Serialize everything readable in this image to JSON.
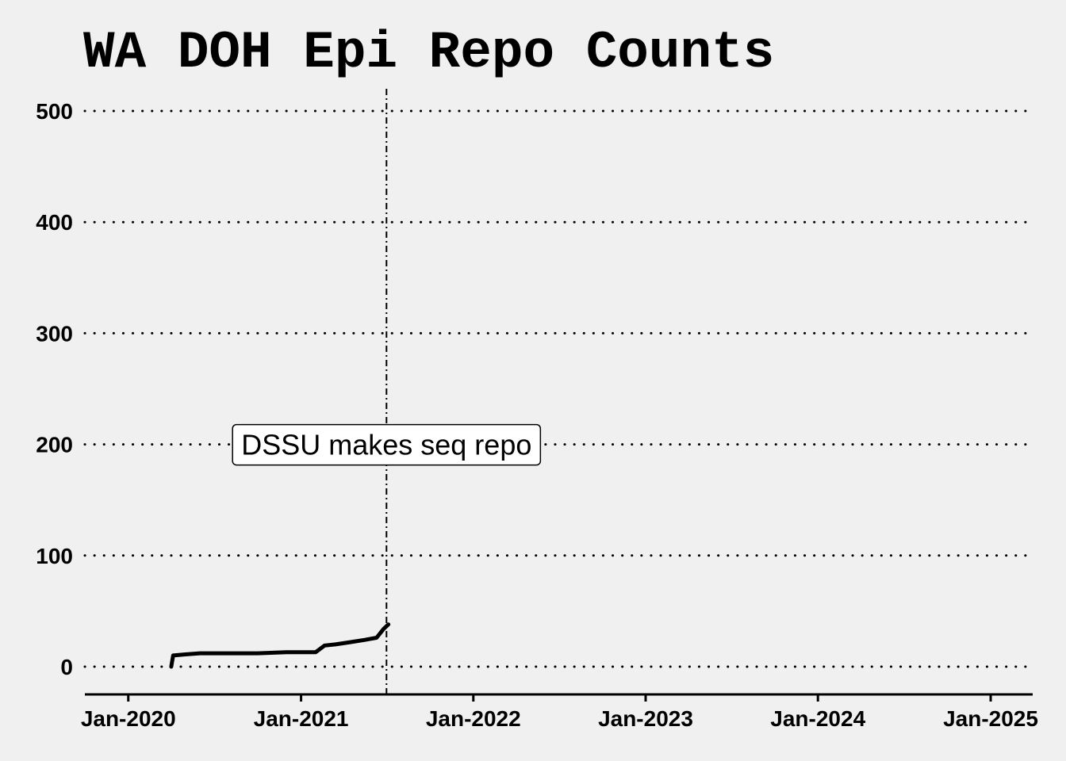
{
  "chart_data": {
    "type": "line",
    "title": "WA DOH Epi Repo Counts",
    "xlabel": "",
    "ylabel": "",
    "x_axis": {
      "type": "date",
      "range": [
        "2019-10-01",
        "2025-03-31"
      ],
      "ticks": [
        {
          "value": "2020-01-01",
          "label": "Jan-2020"
        },
        {
          "value": "2021-01-01",
          "label": "Jan-2021"
        },
        {
          "value": "2022-01-01",
          "label": "Jan-2022"
        },
        {
          "value": "2023-01-01",
          "label": "Jan-2023"
        },
        {
          "value": "2024-01-01",
          "label": "Jan-2024"
        },
        {
          "value": "2025-01-01",
          "label": "Jan-2025"
        }
      ]
    },
    "y_axis": {
      "range": [
        -25,
        520
      ],
      "ticks": [
        0,
        100,
        200,
        300,
        400,
        500
      ]
    },
    "grid": {
      "horizontal": true,
      "vertical": false,
      "style": "dotted"
    },
    "series": [
      {
        "color": "#000000",
        "points": [
          {
            "x": "2020-04-01",
            "y": 0
          },
          {
            "x": "2020-04-05",
            "y": 10
          },
          {
            "x": "2020-05-01",
            "y": 11
          },
          {
            "x": "2020-06-01",
            "y": 12
          },
          {
            "x": "2020-08-01",
            "y": 12
          },
          {
            "x": "2020-10-01",
            "y": 12
          },
          {
            "x": "2020-12-01",
            "y": 13
          },
          {
            "x": "2021-02-01",
            "y": 13
          },
          {
            "x": "2021-02-20",
            "y": 19
          },
          {
            "x": "2021-03-15",
            "y": 20
          },
          {
            "x": "2021-04-15",
            "y": 22
          },
          {
            "x": "2021-05-15",
            "y": 24
          },
          {
            "x": "2021-06-10",
            "y": 26
          },
          {
            "x": "2021-06-25",
            "y": 34
          },
          {
            "x": "2021-07-05",
            "y": 38
          }
        ]
      }
    ],
    "annotations": [
      {
        "type": "vline",
        "x": "2021-07-01",
        "style": "dashdot",
        "color": "#000000"
      },
      {
        "type": "label",
        "x": "2021-07-01",
        "y": 200,
        "text": "DSSU makes seq repo",
        "box": true
      }
    ]
  }
}
